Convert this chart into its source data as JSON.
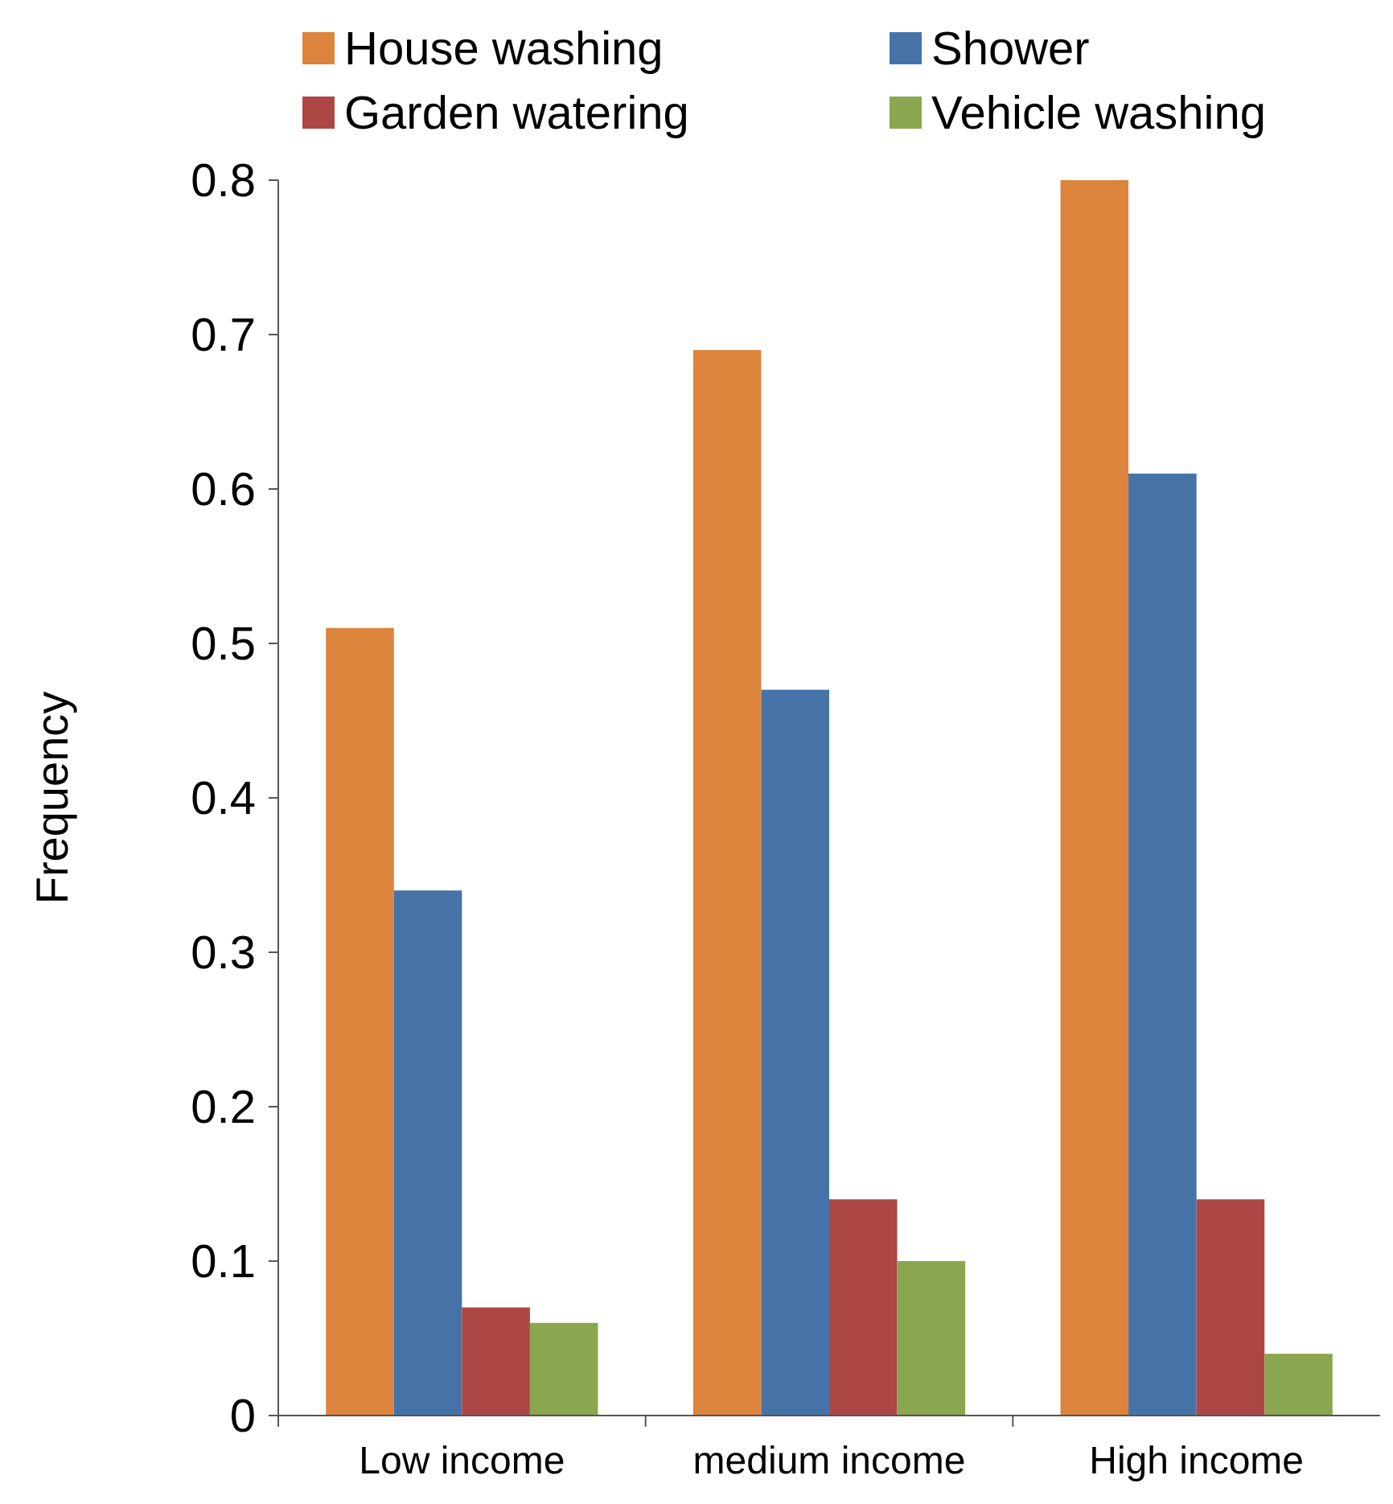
{
  "chart_data": {
    "type": "bar",
    "ylabel": "Frequency",
    "categories": [
      "Low income",
      "medium income",
      "High income"
    ],
    "series": [
      {
        "name": "House washing",
        "color": "#dd843c",
        "values": [
          0.51,
          0.69,
          0.8
        ]
      },
      {
        "name": "Shower",
        "color": "#4673a7",
        "values": [
          0.34,
          0.47,
          0.61
        ]
      },
      {
        "name": "Garden watering",
        "color": "#ac4745",
        "values": [
          0.07,
          0.14,
          0.14
        ]
      },
      {
        "name": "Vehicle washing",
        "color": "#8aa64e",
        "values": [
          0.06,
          0.1,
          0.04
        ]
      }
    ],
    "ylim": [
      0,
      0.8
    ],
    "yticks": [
      0,
      0.1,
      0.2,
      0.3,
      0.4,
      0.5,
      0.6,
      0.7,
      0.8
    ],
    "legend": "top",
    "grid": false
  }
}
